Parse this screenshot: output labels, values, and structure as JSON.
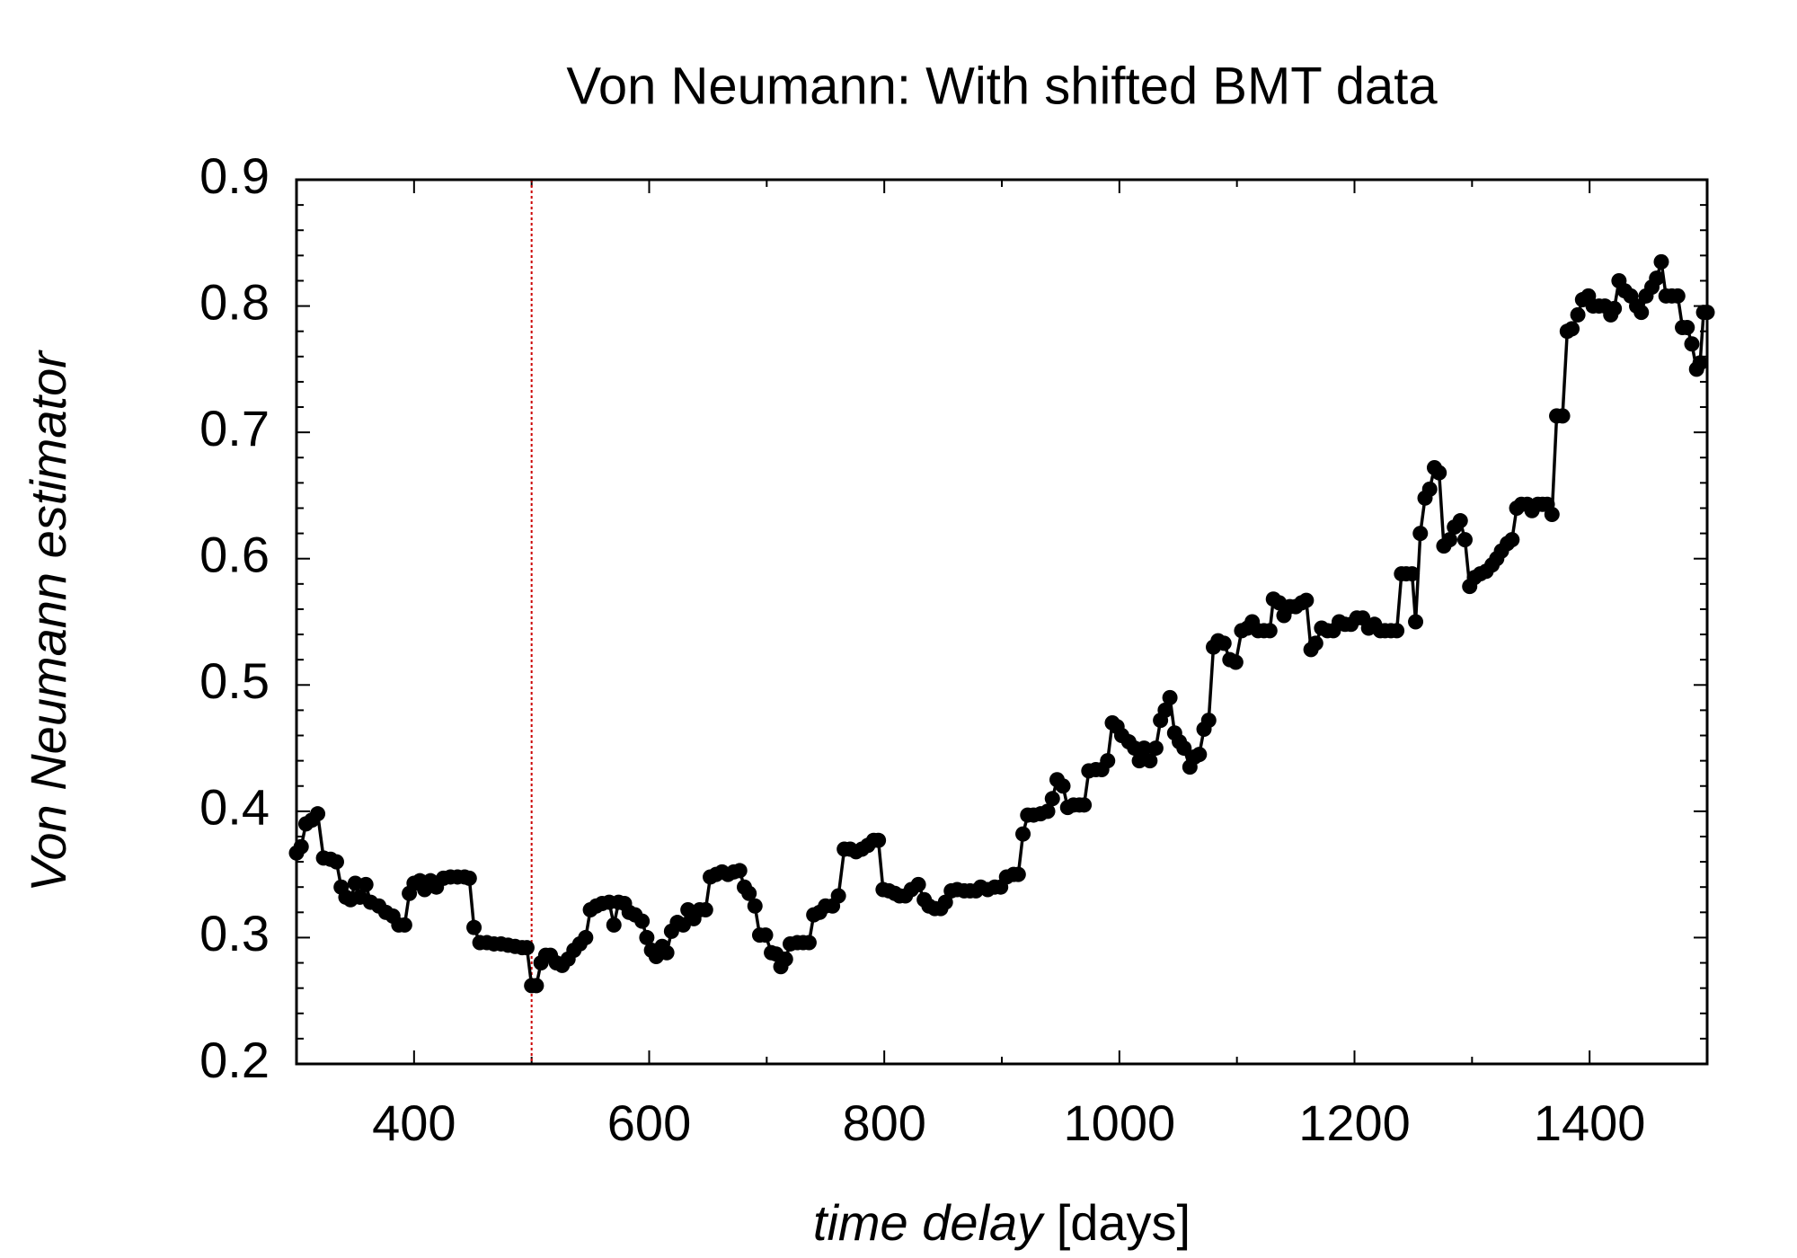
{
  "chart_data": {
    "type": "line",
    "title": "Von Neumann: With shifted BMT data",
    "xlabel": "time delay",
    "xlabel_unit": "[days]",
    "ylabel": "Von Neumann estimator",
    "xlim": [
      300,
      1500
    ],
    "xticks": [
      400,
      600,
      800,
      1000,
      1200,
      1400
    ],
    "ylim": [
      0.2,
      0.9
    ],
    "yticks": [
      0.2,
      0.3,
      0.4,
      0.5,
      0.6,
      0.7,
      0.8,
      0.9
    ],
    "vline": {
      "x": 500,
      "color": "#cc0000"
    },
    "series": [
      {
        "color": "#000000",
        "x": [
          300,
          304,
          308,
          313,
          318,
          323,
          329,
          334,
          338,
          342,
          346,
          350,
          354,
          359,
          363,
          370,
          376,
          382,
          387,
          392,
          396,
          400,
          405,
          409,
          414,
          419,
          425,
          431,
          437,
          443,
          447,
          451,
          456,
          462,
          468,
          474,
          480,
          486,
          492,
          496,
          500,
          504,
          508,
          512,
          516,
          521,
          526,
          531,
          536,
          541,
          546,
          550,
          555,
          560,
          566,
          570,
          574,
          579,
          583,
          588,
          594,
          598,
          602,
          606,
          611,
          615,
          619,
          624,
          629,
          633,
          638,
          643,
          648,
          652,
          657,
          662,
          667,
          672,
          677,
          681,
          685,
          690,
          694,
          699,
          704,
          708,
          712,
          716,
          720,
          726,
          731,
          736,
          740,
          745,
          750,
          756,
          761,
          766,
          771,
          776,
          781,
          786,
          791,
          795,
          799,
          804,
          809,
          813,
          818,
          823,
          829,
          834,
          838,
          843,
          848,
          852,
          857,
          862,
          868,
          873,
          878,
          882,
          888,
          894,
          899,
          904,
          910,
          914,
          918,
          922,
          927,
          933,
          939,
          943,
          947,
          952,
          956,
          961,
          966,
          970,
          974,
          980,
          985,
          990,
          994,
          998,
          1002,
          1008,
          1013,
          1017,
          1021,
          1026,
          1031,
          1035,
          1039,
          1043,
          1047,
          1051,
          1055,
          1060,
          1064,
          1068,
          1072,
          1076,
          1080,
          1084,
          1089,
          1094,
          1099,
          1104,
          1109,
          1113,
          1118,
          1123,
          1128,
          1131,
          1136,
          1140,
          1145,
          1150,
          1155,
          1159,
          1163,
          1167,
          1172,
          1177,
          1182,
          1187,
          1192,
          1197,
          1202,
          1207,
          1212,
          1217,
          1222,
          1226,
          1231,
          1236,
          1240,
          1244,
          1249,
          1252,
          1256,
          1260,
          1264,
          1268,
          1272,
          1276,
          1281,
          1285,
          1290,
          1294,
          1298,
          1302,
          1307,
          1312,
          1317,
          1321,
          1325,
          1330,
          1334,
          1338,
          1342,
          1347,
          1351,
          1356,
          1360,
          1364,
          1368,
          1372,
          1377,
          1381,
          1385,
          1390,
          1394,
          1399,
          1403,
          1408,
          1413,
          1418,
          1421,
          1425,
          1430,
          1435,
          1440,
          1444,
          1448,
          1453,
          1457,
          1461,
          1465,
          1470,
          1475,
          1479,
          1483,
          1487,
          1491,
          1494,
          1497,
          1500
        ],
        "values": [
          0.367,
          0.372,
          0.39,
          0.393,
          0.398,
          0.363,
          0.362,
          0.36,
          0.34,
          0.332,
          0.33,
          0.343,
          0.332,
          0.342,
          0.328,
          0.325,
          0.32,
          0.317,
          0.31,
          0.31,
          0.335,
          0.343,
          0.345,
          0.338,
          0.345,
          0.34,
          0.347,
          0.348,
          0.348,
          0.348,
          0.347,
          0.308,
          0.296,
          0.296,
          0.295,
          0.295,
          0.294,
          0.293,
          0.292,
          0.292,
          0.262,
          0.262,
          0.28,
          0.286,
          0.286,
          0.28,
          0.278,
          0.283,
          0.29,
          0.295,
          0.3,
          0.322,
          0.325,
          0.327,
          0.328,
          0.31,
          0.328,
          0.327,
          0.32,
          0.318,
          0.313,
          0.3,
          0.29,
          0.285,
          0.293,
          0.288,
          0.305,
          0.312,
          0.31,
          0.322,
          0.315,
          0.322,
          0.322,
          0.348,
          0.35,
          0.352,
          0.35,
          0.352,
          0.353,
          0.34,
          0.335,
          0.325,
          0.302,
          0.302,
          0.288,
          0.287,
          0.277,
          0.283,
          0.295,
          0.296,
          0.296,
          0.296,
          0.318,
          0.32,
          0.325,
          0.325,
          0.333,
          0.37,
          0.37,
          0.368,
          0.37,
          0.373,
          0.377,
          0.377,
          0.338,
          0.337,
          0.335,
          0.333,
          0.333,
          0.338,
          0.342,
          0.33,
          0.325,
          0.323,
          0.323,
          0.328,
          0.337,
          0.338,
          0.337,
          0.337,
          0.337,
          0.34,
          0.338,
          0.34,
          0.34,
          0.348,
          0.35,
          0.35,
          0.382,
          0.397,
          0.397,
          0.398,
          0.4,
          0.41,
          0.425,
          0.42,
          0.403,
          0.405,
          0.405,
          0.405,
          0.432,
          0.433,
          0.433,
          0.44,
          0.47,
          0.467,
          0.46,
          0.455,
          0.45,
          0.44,
          0.45,
          0.44,
          0.45,
          0.472,
          0.48,
          0.49,
          0.462,
          0.455,
          0.45,
          0.435,
          0.443,
          0.445,
          0.465,
          0.472,
          0.53,
          0.535,
          0.533,
          0.52,
          0.518,
          0.543,
          0.545,
          0.55,
          0.543,
          0.543,
          0.543,
          0.568,
          0.565,
          0.555,
          0.562,
          0.562,
          0.565,
          0.567,
          0.528,
          0.533,
          0.545,
          0.543,
          0.543,
          0.55,
          0.548,
          0.548,
          0.553,
          0.553,
          0.545,
          0.548,
          0.543,
          0.543,
          0.543,
          0.543,
          0.588,
          0.588,
          0.588,
          0.55,
          0.62,
          0.648,
          0.655,
          0.672,
          0.668,
          0.61,
          0.615,
          0.625,
          0.63,
          0.615,
          0.578,
          0.585,
          0.588,
          0.59,
          0.595,
          0.6,
          0.606,
          0.612,
          0.615,
          0.64,
          0.643,
          0.643,
          0.638,
          0.643,
          0.643,
          0.643,
          0.635,
          0.713,
          0.713,
          0.78,
          0.782,
          0.793,
          0.805,
          0.808,
          0.8,
          0.8,
          0.8,
          0.793,
          0.798,
          0.82,
          0.812,
          0.808,
          0.8,
          0.795,
          0.808,
          0.815,
          0.822,
          0.835,
          0.808,
          0.808,
          0.808,
          0.783,
          0.783,
          0.77,
          0.75,
          0.755,
          0.795,
          0.795
        ]
      }
    ]
  }
}
